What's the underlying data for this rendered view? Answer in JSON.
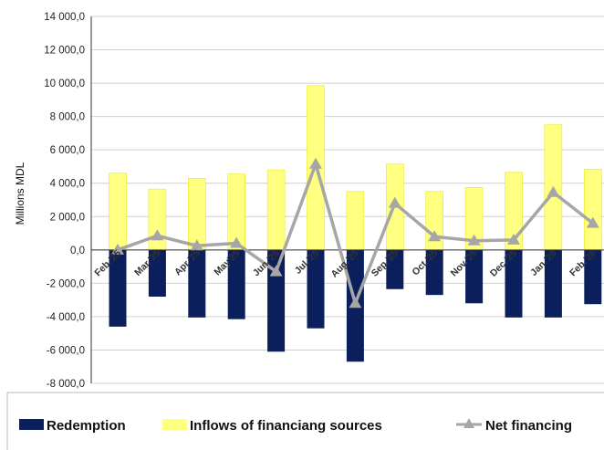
{
  "chart_data": {
    "type": "bar",
    "categories": [
      "Feb.'25",
      "Mar.'25",
      "Apr.'25",
      "May'25",
      "Jun.'25",
      "Jul.'25",
      "Aug.'25",
      "Sep.'25",
      "Oct.'25",
      "Nov.'25",
      "Dec.'25",
      "Jan.'26",
      "Feb.'26"
    ],
    "series": [
      {
        "name": "Redemption",
        "kind": "bar",
        "color": "#0b1f5c",
        "values": [
          -4600,
          -2800,
          -4050,
          -4150,
          -6100,
          -4700,
          -6700,
          -2350,
          -2700,
          -3200,
          -4050,
          -4050,
          -3250
        ]
      },
      {
        "name": "Inflows of financiang sources",
        "kind": "bar",
        "color": "#ffff80",
        "values": [
          4600,
          3650,
          4300,
          4550,
          4800,
          9850,
          3500,
          5150,
          3500,
          3750,
          4650,
          7500,
          4850
        ]
      },
      {
        "name": "Net financing",
        "kind": "line",
        "color": "#a6a6a6",
        "values": [
          0,
          850,
          250,
          400,
          -1300,
          5150,
          -3200,
          2800,
          800,
          550,
          600,
          3450,
          1600
        ]
      }
    ],
    "ylabel": "Millions MDL",
    "ylim": [
      -8000,
      14000
    ],
    "yticks": [
      -8000,
      -6000,
      -4000,
      -2000,
      0,
      2000,
      4000,
      6000,
      8000,
      10000,
      12000,
      14000
    ],
    "ytick_labels": [
      "-8 000,0",
      "-6 000,0",
      "-4 000,0",
      "-2 000,0",
      "0,0",
      "2 000,0",
      "4 000,0",
      "6 000,0",
      "8 000,0",
      "10 000,0",
      "12 000,0",
      "14 000,0"
    ],
    "grid": true,
    "legend_position": "bottom"
  }
}
